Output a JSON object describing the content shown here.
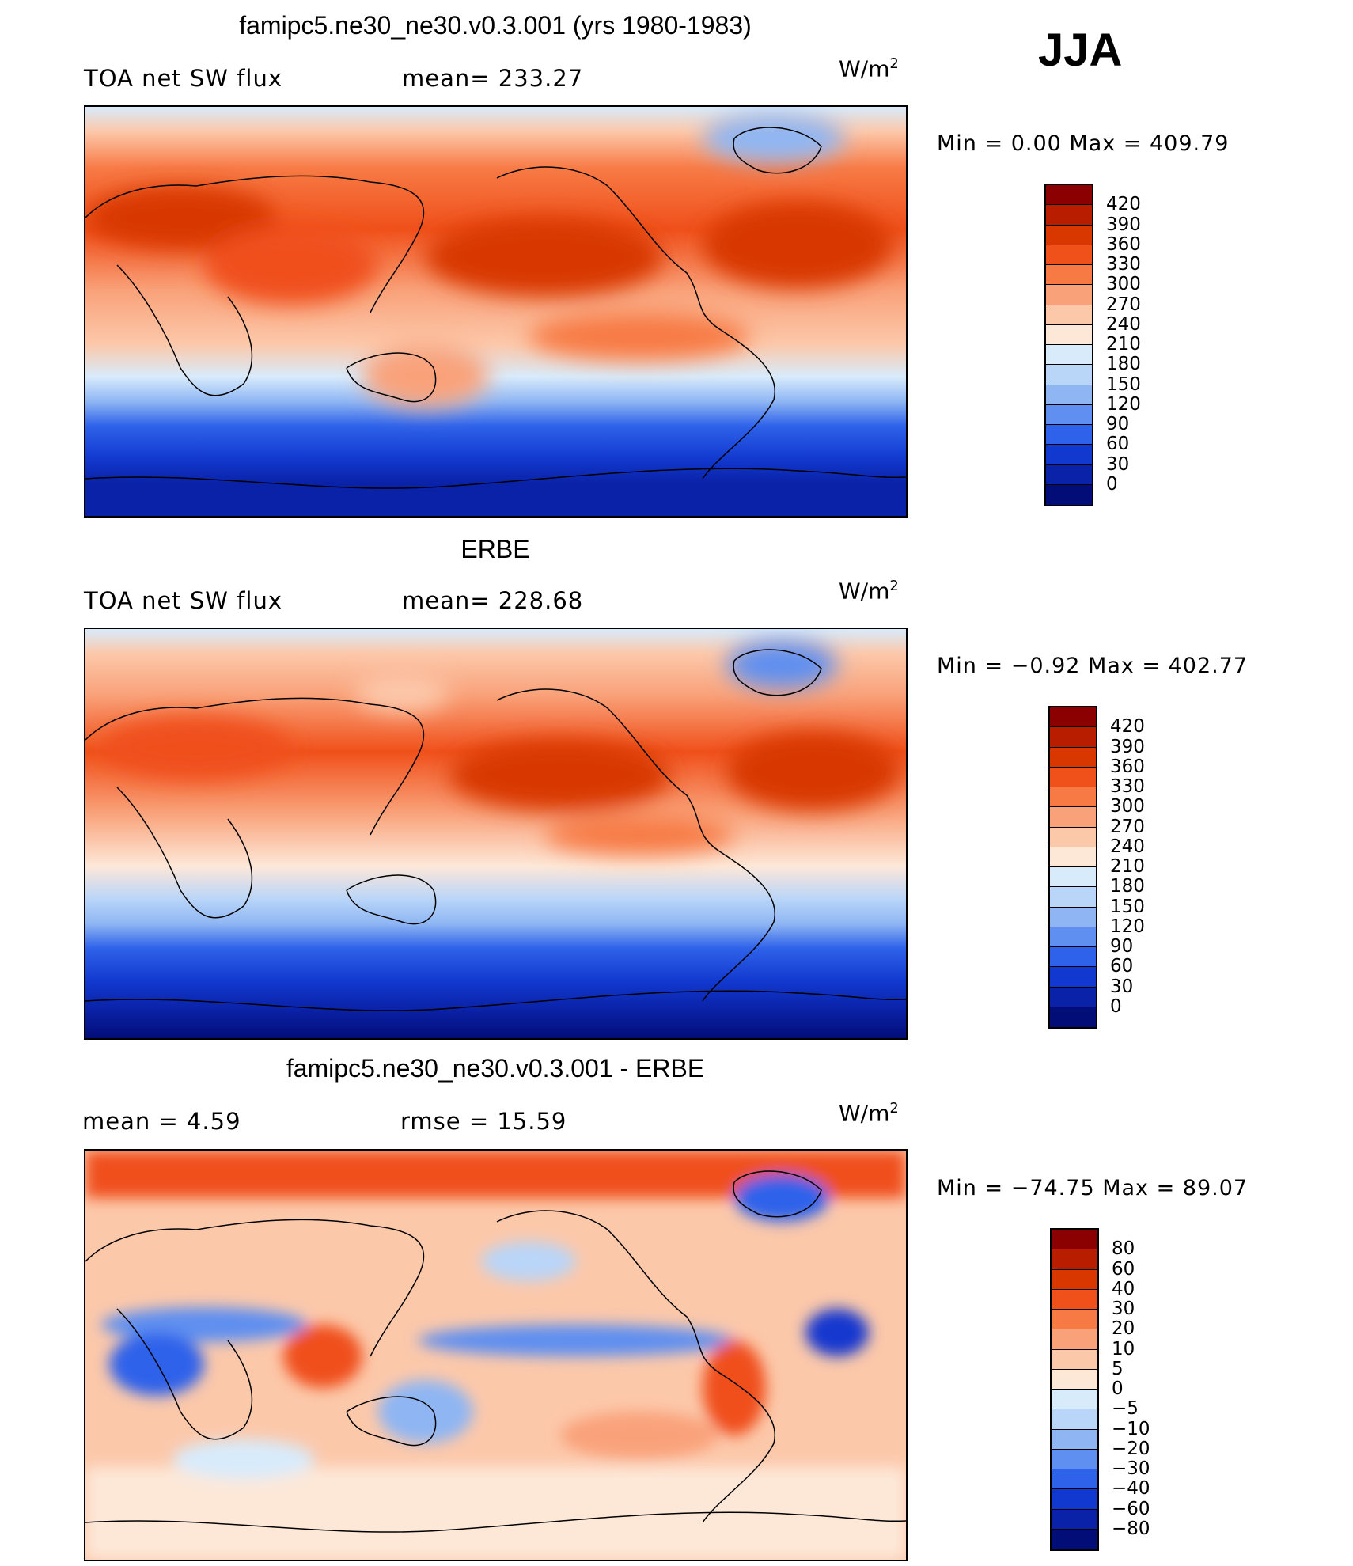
{
  "season": "JJA",
  "panels": [
    {
      "title": "famipc5.ne30_ne30.v0.3.001 (yrs 1980-1983)",
      "left_label": "TOA net SW flux",
      "stat_label": "mean= 233.27",
      "units_base": "W/m",
      "units_exp": "2",
      "minmax": "Min =    0.00 Max = 409.79",
      "colorbar_labels": [
        "420",
        "390",
        "360",
        "330",
        "300",
        "270",
        "240",
        "210",
        "180",
        "150",
        "120",
        "90",
        "60",
        "30",
        "0"
      ],
      "colors": [
        "#8b0000",
        "#b81d00",
        "#d83700",
        "#f0501a",
        "#f77a45",
        "#f9a27a",
        "#fcc8aa",
        "#fde8d8",
        "#d8ebfb",
        "#b9d5f8",
        "#8fb6f3",
        "#5f8ff0",
        "#2e62ea",
        "#1239cf",
        "#0a22a8",
        "#030d78"
      ]
    },
    {
      "title": "ERBE",
      "left_label": "TOA net SW flux",
      "stat_label": "mean= 228.68",
      "units_base": "W/m",
      "units_exp": "2",
      "minmax": "Min =  −0.92 Max = 402.77",
      "colorbar_labels": [
        "420",
        "390",
        "360",
        "330",
        "300",
        "270",
        "240",
        "210",
        "180",
        "150",
        "120",
        "90",
        "60",
        "30",
        "0"
      ],
      "colors": [
        "#8b0000",
        "#b81d00",
        "#d83700",
        "#f0501a",
        "#f77a45",
        "#f9a27a",
        "#fcc8aa",
        "#fde8d8",
        "#d8ebfb",
        "#b9d5f8",
        "#8fb6f3",
        "#5f8ff0",
        "#2e62ea",
        "#1239cf",
        "#0a22a8",
        "#030d78"
      ]
    },
    {
      "title": "famipc5.ne30_ne30.v0.3.001 - ERBE",
      "left_label": "mean =    4.59",
      "stat_label": "rmse =   15.59",
      "units_base": "W/m",
      "units_exp": "2",
      "minmax": "Min = −74.75 Max =   89.07",
      "colorbar_labels": [
        "80",
        "60",
        "40",
        "30",
        "20",
        "10",
        "5",
        "0",
        "−5",
        "−10",
        "−20",
        "−30",
        "−40",
        "−60",
        "−80"
      ],
      "colors": [
        "#8b0000",
        "#b81d00",
        "#d83700",
        "#f0501a",
        "#f77a45",
        "#f9a27a",
        "#fcc8aa",
        "#fde8d8",
        "#d8ebfb",
        "#b9d5f8",
        "#8fb6f3",
        "#5f8ff0",
        "#2e62ea",
        "#1239cf",
        "#0a22a8",
        "#030d78"
      ]
    }
  ]
}
